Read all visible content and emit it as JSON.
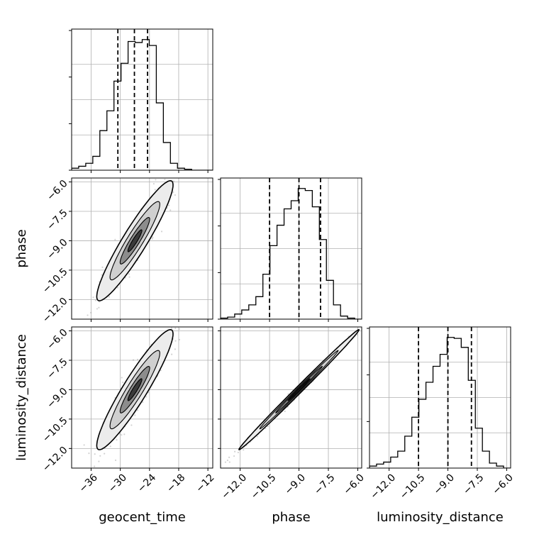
{
  "chart_data": {
    "type": "corner",
    "parameters": [
      "geocent_time",
      "phase",
      "luminosity_distance"
    ],
    "axis_labels": {
      "geocent_time": "geocent_time",
      "phase": "phase",
      "luminosity_distance": "luminosity_distance"
    },
    "ranges": {
      "geocent_time": [
        -40,
        -11
      ],
      "phase": [
        -13.0,
        -5.8
      ],
      "luminosity_distance": [
        -13.0,
        -5.8
      ]
    },
    "ticks": {
      "geocent_time": [
        -36,
        -30,
        -24,
        -18,
        -12
      ],
      "phase": [
        -12.0,
        -10.5,
        -9.0,
        -7.5,
        -6.0
      ],
      "luminosity_distance": [
        -12.0,
        -10.5,
        -9.0,
        -7.5,
        -6.0
      ]
    },
    "tick_labels": {
      "geocent_time": [
        "−36",
        "−30",
        "−24",
        "−18",
        "−12"
      ],
      "phase": [
        "−12.0",
        "−10.5",
        "−9.0",
        "−7.5",
        "−6.0"
      ],
      "luminosity_distance": [
        "−12.0",
        "−10.5",
        "−9.0",
        "−7.5",
        "−6.0"
      ]
    },
    "quantiles": {
      "geocent_time": [
        -30.5,
        -27.1,
        -24.4
      ],
      "phase": [
        -10.5,
        -9.0,
        -7.9
      ],
      "luminosity_distance": [
        -10.5,
        -9.0,
        -7.8
      ]
    },
    "histograms": {
      "geocent_time": {
        "edges": [
          -40,
          -38.55,
          -37.1,
          -35.65,
          -34.2,
          -32.75,
          -31.3,
          -29.85,
          -28.4,
          -26.95,
          -25.5,
          -24.05,
          -22.6,
          -21.15,
          -19.7,
          -18.25,
          -16.8,
          -15.35,
          -13.9,
          -12.45,
          -11
        ],
        "counts": [
          2,
          4,
          7,
          14,
          40,
          60,
          90,
          108,
          130,
          129,
          132,
          126,
          68,
          28,
          7,
          2,
          1,
          0,
          0,
          0
        ]
      },
      "phase": {
        "edges": [
          -13.0,
          -12.64,
          -12.28,
          -11.92,
          -11.56,
          -11.2,
          -10.84,
          -10.48,
          -10.12,
          -9.76,
          -9.4,
          -9.04,
          -8.68,
          -8.32,
          -7.96,
          -7.6,
          -7.24,
          -6.88,
          -6.52,
          -6.16,
          -5.8
        ],
        "counts": [
          1,
          2,
          5,
          9,
          14,
          22,
          44,
          72,
          92,
          108,
          116,
          128,
          126,
          110,
          78,
          38,
          14,
          3,
          1,
          0
        ]
      },
      "luminosity_distance": {
        "edges": [
          -13.0,
          -12.64,
          -12.28,
          -11.92,
          -11.56,
          -11.2,
          -10.84,
          -10.48,
          -10.12,
          -9.76,
          -9.4,
          -9.04,
          -8.68,
          -8.32,
          -7.96,
          -7.6,
          -7.24,
          -6.88,
          -6.52,
          -6.16,
          -5.8
        ],
        "counts": [
          2,
          4,
          6,
          11,
          17,
          32,
          51,
          69,
          86,
          102,
          114,
          131,
          130,
          121,
          88,
          40,
          17,
          5,
          2,
          0
        ]
      }
    },
    "scatter_2d": {
      "mean": {
        "geocent_time": -27,
        "phase": -9.0,
        "luminosity_distance": -9.0
      },
      "sd": {
        "geocent_time": 3.2,
        "phase": 1.25,
        "luminosity_distance": 1.25
      },
      "correlation": {
        "phase|geocent_time": 0.93,
        "luminosity_distance|geocent_time": 0.93,
        "luminosity_distance|phase": 0.997
      },
      "n_points": 900
    },
    "grid": true
  }
}
